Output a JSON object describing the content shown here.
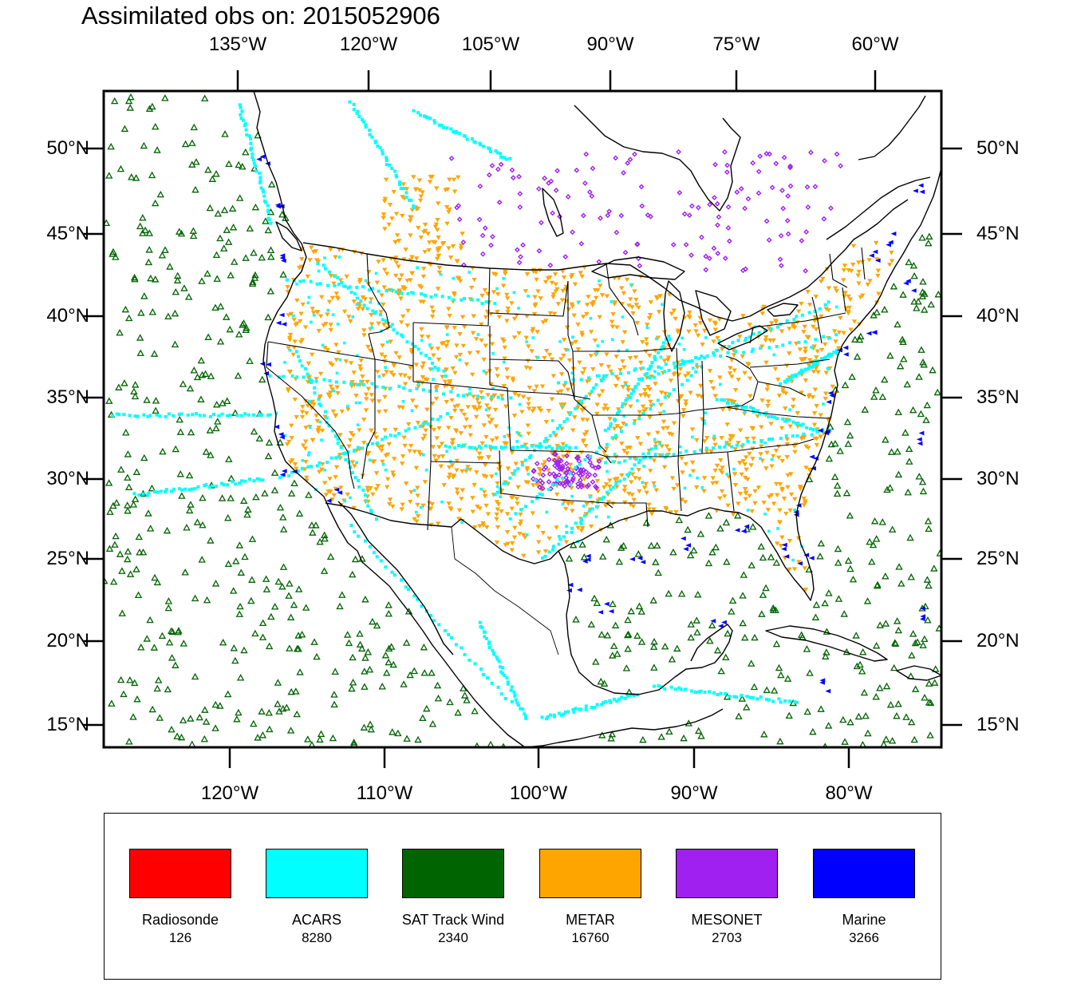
{
  "title": "Assimilated obs on: 2015052906",
  "axes": {
    "top_lon_labels": [
      "135°W",
      "120°W",
      "105°W",
      "90°W",
      "75°W",
      "60°W"
    ],
    "bottom_lon_labels": [
      "120°W",
      "110°W",
      "100°W",
      "90°W",
      "80°W"
    ],
    "lat_labels": [
      "50°N",
      "45°N",
      "40°N",
      "35°N",
      "30°N",
      "25°N",
      "20°N",
      "15°N"
    ]
  },
  "legend": {
    "items": [
      {
        "name": "Radiosonde",
        "count": "126",
        "color": "#ff0000"
      },
      {
        "name": "ACARS",
        "count": "8280",
        "color": "#00ffff"
      },
      {
        "name": "SAT Track Wind",
        "count": "2340",
        "color": "#006400"
      },
      {
        "name": "METAR",
        "count": "16760",
        "color": "#ffa500"
      },
      {
        "name": "MESONET",
        "count": "2703",
        "color": "#a020f0"
      },
      {
        "name": "Marine",
        "count": "3266",
        "color": "#0000ff"
      }
    ]
  },
  "map": {
    "projection": "Lambert conformal",
    "boundaries": "coastlines, state and country borders",
    "marker_styles": {
      "ACARS": "small square",
      "SAT Track Wind": "open triangle",
      "METAR": "filled down-triangle",
      "MESONET": "small diamond",
      "Marine": "left-pointing triangle"
    }
  }
}
